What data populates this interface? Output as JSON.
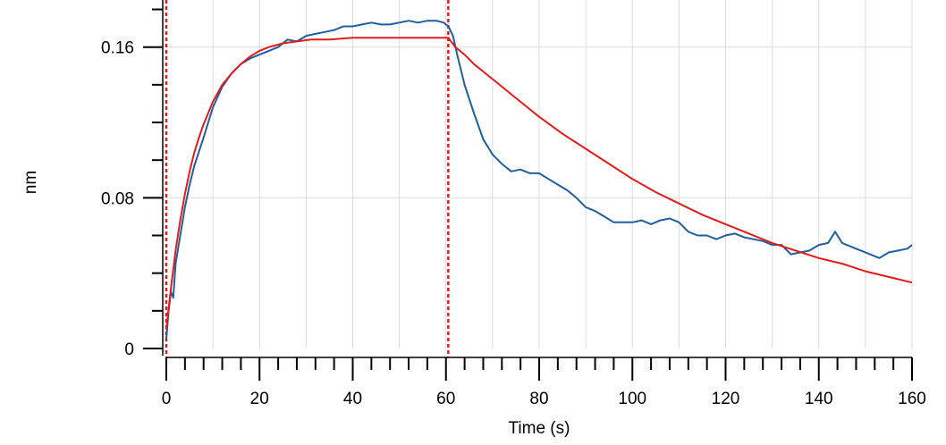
{
  "chart_data": {
    "type": "line",
    "title": "",
    "xlabel": "Time (s)",
    "ylabel": "nm",
    "xlim": [
      0,
      160
    ],
    "ylim": [
      0,
      0.185
    ],
    "grid": true,
    "x_ticks": [
      0,
      20,
      40,
      60,
      80,
      100,
      120,
      140,
      160
    ],
    "x_tick_labels": [
      "0",
      "20",
      "40",
      "60",
      "80",
      "100",
      "120",
      "140",
      "160"
    ],
    "y_ticks": [
      0,
      0.08,
      0.16
    ],
    "y_tick_labels": [
      "0",
      "0.08",
      "0.16"
    ],
    "markers_x": [
      0,
      60.5
    ],
    "series": [
      {
        "color": "#1f5f9f",
        "points": [
          [
            0,
            0.005
          ],
          [
            0.5,
            0.02
          ],
          [
            1,
            0.03
          ],
          [
            1.5,
            0.027
          ],
          [
            2,
            0.045
          ],
          [
            3,
            0.06
          ],
          [
            4,
            0.075
          ],
          [
            5,
            0.087
          ],
          [
            6,
            0.097
          ],
          [
            8,
            0.112
          ],
          [
            10,
            0.128
          ],
          [
            12,
            0.139
          ],
          [
            14,
            0.146
          ],
          [
            16,
            0.151
          ],
          [
            18,
            0.154
          ],
          [
            20,
            0.156
          ],
          [
            22,
            0.158
          ],
          [
            24,
            0.16
          ],
          [
            26,
            0.164
          ],
          [
            28,
            0.163
          ],
          [
            30,
            0.166
          ],
          [
            32,
            0.167
          ],
          [
            34,
            0.168
          ],
          [
            36,
            0.169
          ],
          [
            38,
            0.171
          ],
          [
            40,
            0.171
          ],
          [
            42,
            0.172
          ],
          [
            44,
            0.173
          ],
          [
            46,
            0.172
          ],
          [
            48,
            0.172
          ],
          [
            50,
            0.173
          ],
          [
            52,
            0.174
          ],
          [
            54,
            0.173
          ],
          [
            56,
            0.174
          ],
          [
            58,
            0.174
          ],
          [
            59.5,
            0.173
          ],
          [
            60.5,
            0.171
          ],
          [
            61.5,
            0.166
          ],
          [
            62.5,
            0.155
          ],
          [
            64,
            0.14
          ],
          [
            66,
            0.125
          ],
          [
            68,
            0.111
          ],
          [
            70,
            0.103
          ],
          [
            72,
            0.098
          ],
          [
            74,
            0.094
          ],
          [
            76,
            0.095
          ],
          [
            78,
            0.093
          ],
          [
            80,
            0.093
          ],
          [
            82,
            0.09
          ],
          [
            84,
            0.087
          ],
          [
            86,
            0.084
          ],
          [
            88,
            0.08
          ],
          [
            90,
            0.075
          ],
          [
            92,
            0.073
          ],
          [
            94,
            0.07
          ],
          [
            96,
            0.067
          ],
          [
            98,
            0.067
          ],
          [
            100,
            0.067
          ],
          [
            102,
            0.068
          ],
          [
            104,
            0.066
          ],
          [
            106,
            0.068
          ],
          [
            108,
            0.069
          ],
          [
            110,
            0.067
          ],
          [
            112,
            0.062
          ],
          [
            114,
            0.06
          ],
          [
            116,
            0.06
          ],
          [
            118,
            0.058
          ],
          [
            120,
            0.06
          ],
          [
            122,
            0.061
          ],
          [
            124,
            0.059
          ],
          [
            126,
            0.058
          ],
          [
            128,
            0.057
          ],
          [
            130,
            0.055
          ],
          [
            132,
            0.055
          ],
          [
            134,
            0.05
          ],
          [
            136,
            0.051
          ],
          [
            138,
            0.052
          ],
          [
            140,
            0.055
          ],
          [
            142,
            0.056
          ],
          [
            143.5,
            0.062
          ],
          [
            145,
            0.056
          ],
          [
            147,
            0.054
          ],
          [
            149,
            0.052
          ],
          [
            151,
            0.05
          ],
          [
            153,
            0.048
          ],
          [
            155,
            0.051
          ],
          [
            157,
            0.052
          ],
          [
            159,
            0.053
          ],
          [
            160,
            0.055
          ]
        ]
      },
      {
        "color": "#e31a1a",
        "points": [
          [
            0,
            0.01
          ],
          [
            1,
            0.032
          ],
          [
            2,
            0.052
          ],
          [
            3,
            0.068
          ],
          [
            4,
            0.082
          ],
          [
            5,
            0.094
          ],
          [
            6,
            0.104
          ],
          [
            7,
            0.112
          ],
          [
            8,
            0.119
          ],
          [
            9,
            0.125
          ],
          [
            10,
            0.131
          ],
          [
            12,
            0.14
          ],
          [
            14,
            0.146
          ],
          [
            16,
            0.151
          ],
          [
            18,
            0.155
          ],
          [
            20,
            0.158
          ],
          [
            22,
            0.16
          ],
          [
            25,
            0.162
          ],
          [
            28,
            0.163
          ],
          [
            31,
            0.164
          ],
          [
            35,
            0.164
          ],
          [
            40,
            0.165
          ],
          [
            50,
            0.165
          ],
          [
            60,
            0.165
          ],
          [
            60.5,
            0.165
          ],
          [
            62,
            0.16
          ],
          [
            64,
            0.156
          ],
          [
            66,
            0.151
          ],
          [
            68,
            0.147
          ],
          [
            70,
            0.143
          ],
          [
            75,
            0.133
          ],
          [
            80,
            0.123
          ],
          [
            85,
            0.114
          ],
          [
            90,
            0.106
          ],
          [
            95,
            0.098
          ],
          [
            100,
            0.09
          ],
          [
            105,
            0.083
          ],
          [
            110,
            0.077
          ],
          [
            115,
            0.071
          ],
          [
            120,
            0.066
          ],
          [
            125,
            0.061
          ],
          [
            130,
            0.056
          ],
          [
            135,
            0.052
          ],
          [
            140,
            0.048
          ],
          [
            145,
            0.045
          ],
          [
            150,
            0.041
          ],
          [
            155,
            0.038
          ],
          [
            160,
            0.035
          ]
        ]
      }
    ]
  }
}
